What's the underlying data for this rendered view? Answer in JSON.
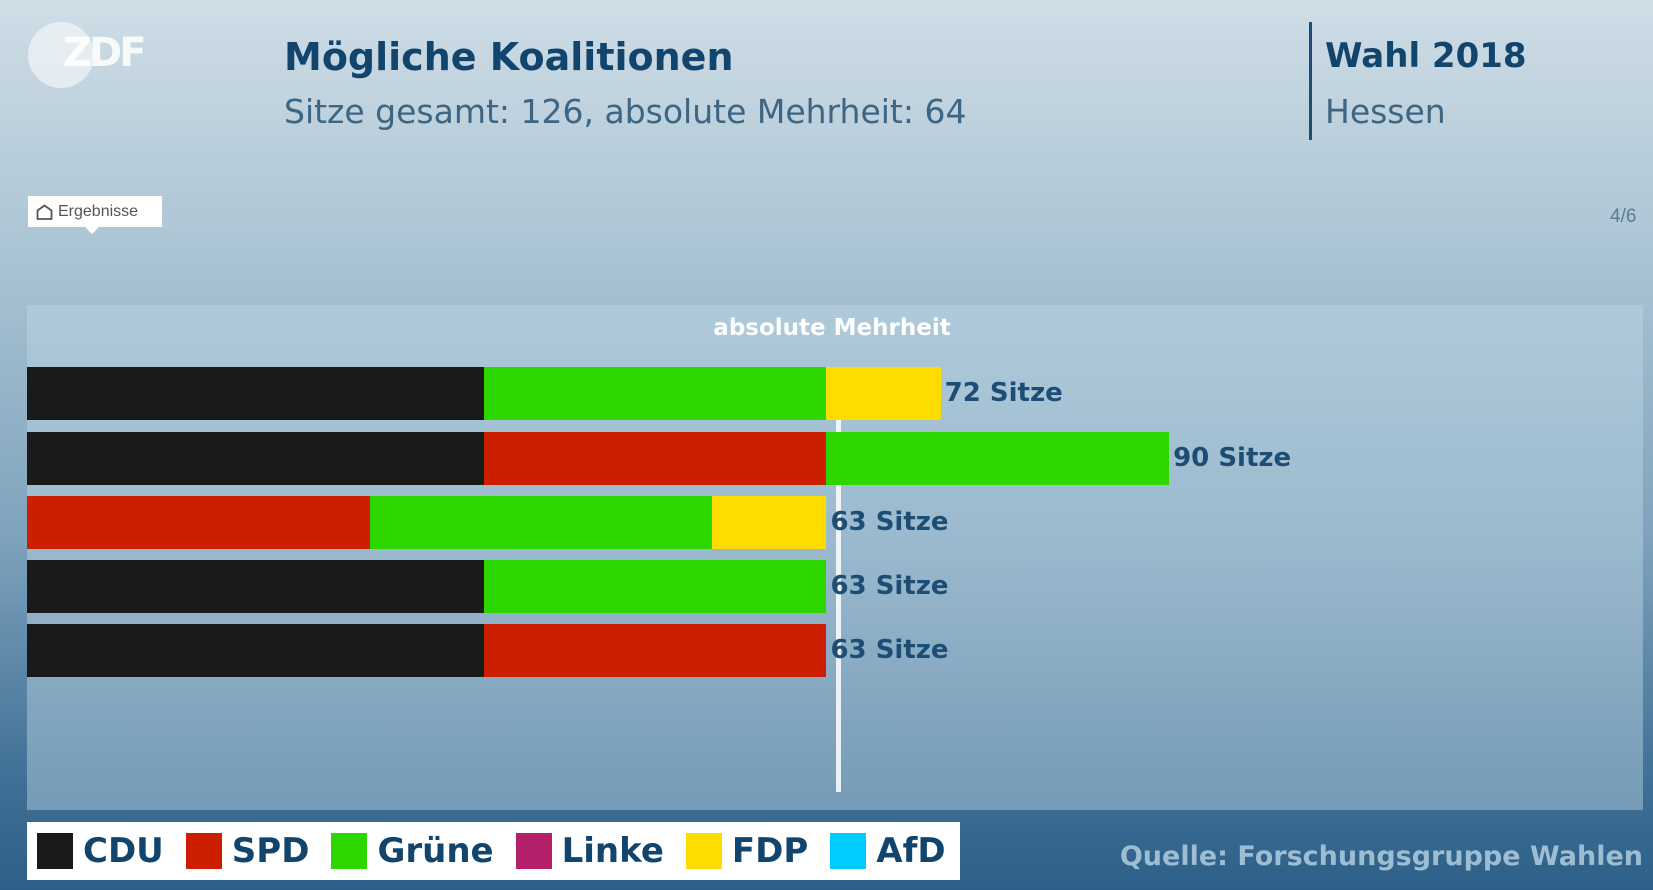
{
  "logo": "ZDF",
  "header": {
    "title": "Mögliche Koalitionen",
    "subtitle": "Sitze gesamt: 126, absolute Mehrheit: 64",
    "election": "Wahl 2018",
    "region": "Hessen"
  },
  "nav": {
    "home_label": "Ergebnisse",
    "page": "4/6"
  },
  "source": "Quelle: Forschungsgruppe Wahlen",
  "chart_data": {
    "type": "bar",
    "orientation": "horizontal-stacked",
    "total_seats": 126,
    "majority": 64,
    "majority_label": "absolute Mehrheit",
    "parties": [
      {
        "name": "CDU",
        "color": "#1a1a1a"
      },
      {
        "name": "SPD",
        "color": "#cc1f00"
      },
      {
        "name": "Grüne",
        "color": "#2ed600"
      },
      {
        "name": "Linke",
        "color": "#b5206b"
      },
      {
        "name": "FDP",
        "color": "#ffdc00"
      },
      {
        "name": "AfD",
        "color": "#00ccff"
      }
    ],
    "coalitions": [
      {
        "segments": [
          {
            "party": "CDU",
            "seats": 36
          },
          {
            "party": "Grüne",
            "seats": 27
          },
          {
            "party": "FDP",
            "seats": 9
          }
        ],
        "total": 72,
        "label": "72 Sitze"
      },
      {
        "segments": [
          {
            "party": "CDU",
            "seats": 36
          },
          {
            "party": "SPD",
            "seats": 27
          },
          {
            "party": "Grüne",
            "seats": 27
          }
        ],
        "total": 90,
        "label": "90 Sitze"
      },
      {
        "segments": [
          {
            "party": "SPD",
            "seats": 27
          },
          {
            "party": "Grüne",
            "seats": 27
          },
          {
            "party": "FDP",
            "seats": 9
          }
        ],
        "total": 63,
        "label": "63 Sitze"
      },
      {
        "segments": [
          {
            "party": "CDU",
            "seats": 36
          },
          {
            "party": "Grüne",
            "seats": 27
          }
        ],
        "total": 63,
        "label": "63 Sitze"
      },
      {
        "segments": [
          {
            "party": "CDU",
            "seats": 36
          },
          {
            "party": "SPD",
            "seats": 27
          }
        ],
        "total": 63,
        "label": "63 Sitze"
      }
    ]
  }
}
